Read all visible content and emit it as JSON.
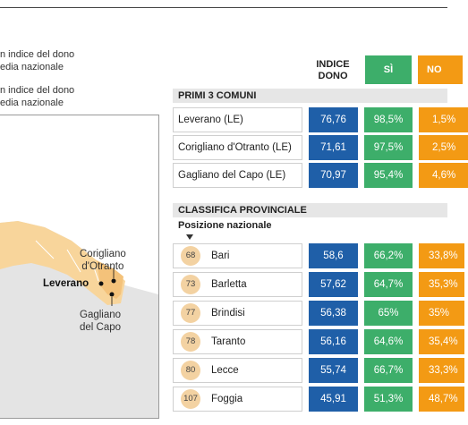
{
  "legend": {
    "line1": "n indice del dono",
    "line2": "edia nazionale",
    "line3": "n indice del dono",
    "line4": "edia nazionale"
  },
  "map": {
    "labels": {
      "corigliano": "Corigliano\nd'Otranto",
      "leverano": "Leverano",
      "gagliano": "Gagliano\ndel Capo"
    },
    "colors": {
      "region": "#f8d59b",
      "land": "#e4e4e4",
      "border": "#ffffff",
      "marker": "#111111"
    }
  },
  "headers": {
    "indice": "INDICE\nDONO",
    "si": "SÌ",
    "no": "NO"
  },
  "chart_data": {
    "type": "table",
    "sections": [
      {
        "title": "PRIMI 3 COMUNI",
        "columns": [
          "INDICE DONO",
          "SÌ",
          "NO"
        ],
        "rows": [
          {
            "name": "Leverano (LE)",
            "indice": "76,76",
            "si": "98,5%",
            "no": "1,5%"
          },
          {
            "name": "Corigliano d'Otranto (LE)",
            "indice": "71,61",
            "si": "97,5%",
            "no": "2,5%"
          },
          {
            "name": "Gagliano del Capo (LE)",
            "indice": "70,97",
            "si": "95,4%",
            "no": "4,6%"
          }
        ]
      },
      {
        "title": "CLASSIFICA PROVINCIALE",
        "subtitle": "Posizione nazionale",
        "columns": [
          "INDICE DONO",
          "SÌ",
          "NO"
        ],
        "rows": [
          {
            "rank": "68",
            "name": "Bari",
            "indice": "58,6",
            "si": "66,2%",
            "no": "33,8%"
          },
          {
            "rank": "73",
            "name": "Barletta",
            "indice": "57,62",
            "si": "64,7%",
            "no": "35,3%"
          },
          {
            "rank": "77",
            "name": "Brindisi",
            "indice": "56,38",
            "si": "65%",
            "no": "35%"
          },
          {
            "rank": "78",
            "name": "Taranto",
            "indice": "56,16",
            "si": "64,6%",
            "no": "35,4%"
          },
          {
            "rank": "80",
            "name": "Lecce",
            "indice": "55,74",
            "si": "66,7%",
            "no": "33,3%"
          },
          {
            "rank": "107",
            "name": "Foggia",
            "indice": "45,91",
            "si": "51,3%",
            "no": "48,7%"
          }
        ]
      }
    ],
    "colors": {
      "indice": "#1f5fa8",
      "si": "#3dae6a",
      "no": "#f39a14",
      "rank_circle": "#f3d2a2",
      "section_bg": "#e6e6e6"
    }
  }
}
